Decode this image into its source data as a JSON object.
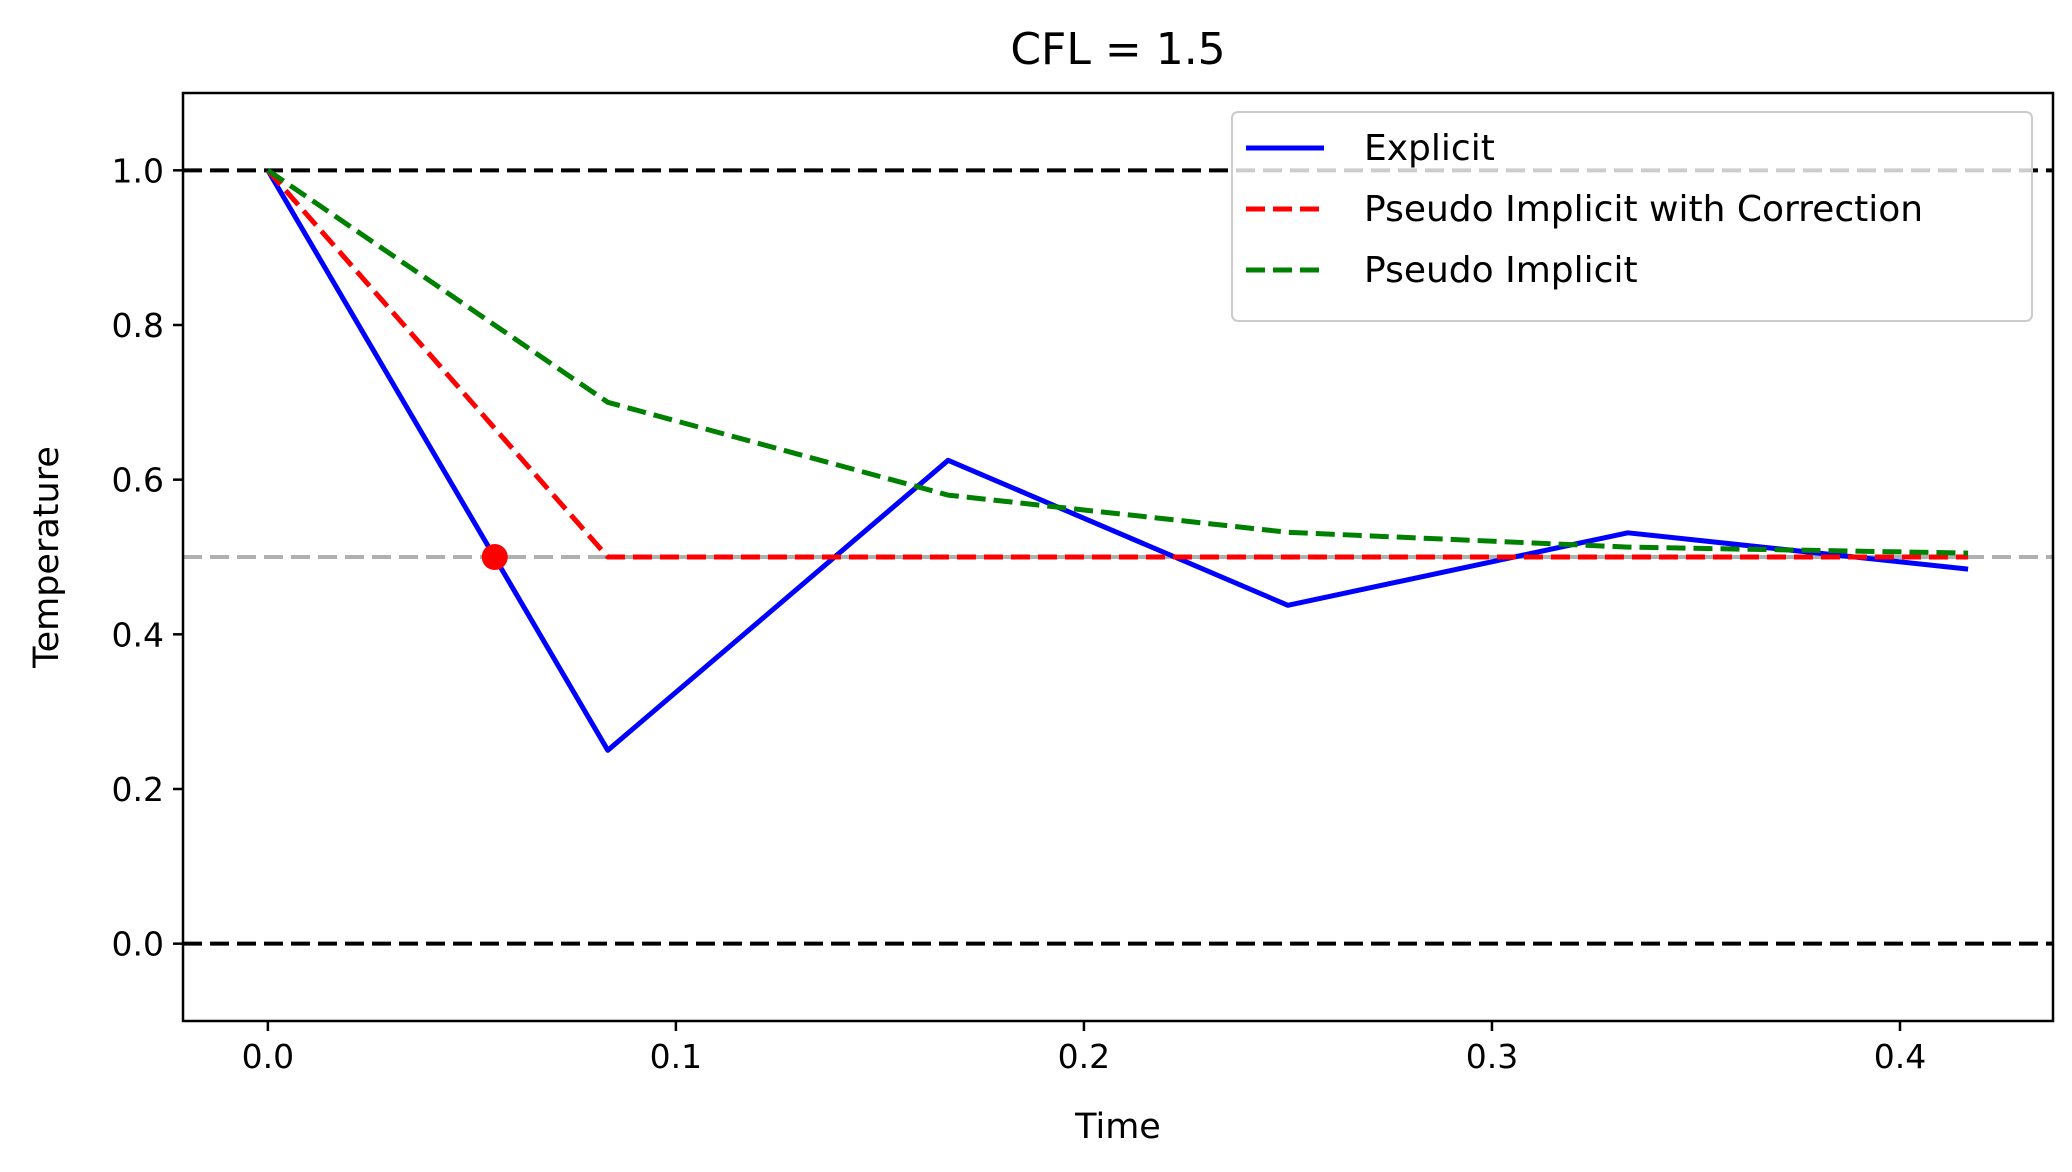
{
  "chart_data": {
    "type": "line",
    "title": "CFL = 1.5",
    "xlabel": "Time",
    "ylabel": "Temperature",
    "xlim": [
      -0.0208,
      0.4375
    ],
    "ylim": [
      -0.1,
      1.1
    ],
    "xticks": [
      0.0,
      0.1,
      0.2,
      0.3,
      0.4
    ],
    "xtick_labels": [
      "0.0",
      "0.1",
      "0.2",
      "0.3",
      "0.4"
    ],
    "yticks": [
      0.0,
      0.2,
      0.4,
      0.6,
      0.8,
      1.0
    ],
    "ytick_labels": [
      "0.0",
      "0.2",
      "0.4",
      "0.6",
      "0.8",
      "1.0"
    ],
    "grid": false,
    "legend_position": "top-right",
    "series": [
      {
        "name": "Explicit",
        "color": "#0000ff",
        "style": "solid",
        "x": [
          0.0,
          0.0833,
          0.1667,
          0.25,
          0.3333,
          0.4167
        ],
        "values": [
          1.0,
          0.25,
          0.625,
          0.4375,
          0.53125,
          0.484375
        ]
      },
      {
        "name": "Pseudo Implicit with Correction",
        "color": "#ff0000",
        "style": "dashed",
        "x": [
          0.0,
          0.0833,
          0.1667,
          0.25,
          0.3333,
          0.4167
        ],
        "values": [
          1.0,
          0.5,
          0.5,
          0.5,
          0.5,
          0.5
        ]
      },
      {
        "name": "Pseudo Implicit",
        "color": "#008000",
        "style": "dashed",
        "x": [
          0.0,
          0.0833,
          0.1667,
          0.25,
          0.3333,
          0.4167
        ],
        "values": [
          1.0,
          0.7,
          0.58,
          0.532,
          0.5128,
          0.5051
        ]
      }
    ],
    "reference_lines": [
      {
        "y": 1.0,
        "color": "#000000",
        "style": "dashed"
      },
      {
        "y": 0.0,
        "color": "#000000",
        "style": "dashed"
      },
      {
        "y": 0.5,
        "color": "#b0b0b0",
        "style": "dashed"
      }
    ],
    "marker": {
      "x": 0.0556,
      "y": 0.5,
      "color": "#ff0000"
    }
  }
}
